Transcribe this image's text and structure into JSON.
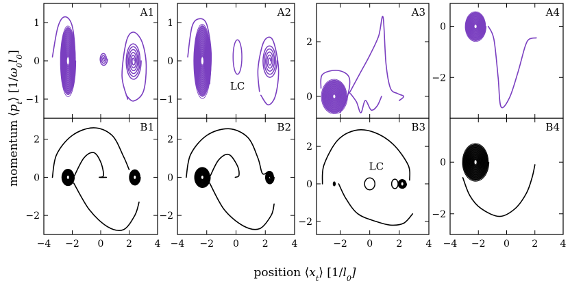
{
  "figure": {
    "ylabel": "momentum ⟨p_t⟩ [1/ω₀l₀]",
    "ylabel_parts": [
      "momentum ⟨",
      "p",
      "t",
      "⟩ [1/",
      "ω",
      "0",
      "l",
      "0",
      "]"
    ],
    "xlabel": "position ⟨x_t⟩ [1/l₀]",
    "xlabel_parts": [
      "position ⟨",
      "x",
      "t",
      "⟩ [1/",
      "l",
      "0",
      "]"
    ],
    "colors": {
      "row_a": "#7a3fc0",
      "row_b": "#000000"
    }
  },
  "chart_data": [
    {
      "id": "A1",
      "label": "A1",
      "type": "line",
      "row": "A",
      "xlim": [
        -4,
        4
      ],
      "ylim": [
        -1.5,
        1.5
      ],
      "yticks": [
        -1,
        0,
        1
      ],
      "xticks": [
        -4,
        -2,
        0,
        2,
        4
      ],
      "features": [
        {
          "kind": "spiral",
          "cx": -2.3,
          "cy": 0.0,
          "rx": 0.55,
          "ry": 0.95,
          "rx0": 0.1,
          "ry0": 0.12,
          "turns": 16,
          "filled": true
        },
        {
          "kind": "spiral",
          "cx": 0.2,
          "cy": 0.05,
          "rx": 0.28,
          "ry": 0.18,
          "rx0": 0.02,
          "ry0": 0.02,
          "turns": 3
        },
        {
          "kind": "spiral",
          "cx": 2.3,
          "cy": 0.0,
          "rx": 0.55,
          "ry": 0.5,
          "rx0": 0.05,
          "ry0": 0.05,
          "turns": 6
        }
      ],
      "path": [
        [
          -3.4,
          0.1
        ],
        [
          -3.0,
          0.9
        ],
        [
          -2.5,
          1.15
        ],
        [
          -2.0,
          0.9
        ],
        [
          -1.8,
          0.1
        ],
        [
          -1.9,
          -0.6
        ]
      ],
      "path2": [
        [
          1.9,
          -1.0
        ],
        [
          1.5,
          -0.4
        ],
        [
          1.8,
          0.5
        ],
        [
          2.3,
          0.75
        ],
        [
          2.9,
          0.5
        ],
        [
          3.2,
          -0.1
        ],
        [
          3.0,
          -0.8
        ],
        [
          2.3,
          -1.05
        ],
        [
          1.8,
          -0.9
        ]
      ]
    },
    {
      "id": "A2",
      "label": "A2",
      "type": "line",
      "row": "A",
      "xlim": [
        -4,
        4
      ],
      "ylim": [
        -1.5,
        1.5
      ],
      "yticks": [
        -1,
        0,
        1
      ],
      "xticks": [
        -4,
        -2,
        0,
        2,
        4
      ],
      "annotation": "LC",
      "features": [
        {
          "kind": "spiral",
          "cx": -2.3,
          "cy": 0.0,
          "rx": 0.6,
          "ry": 1.0,
          "rx0": 0.1,
          "ry0": 0.12,
          "turns": 16,
          "filled": true
        },
        {
          "kind": "loop",
          "cx": 0.1,
          "cy": 0.1,
          "rx": 0.3,
          "ry": 0.45
        },
        {
          "kind": "spiral",
          "cx": 2.3,
          "cy": 0.0,
          "rx": 0.5,
          "ry": 0.45,
          "rx0": 0.05,
          "ry0": 0.05,
          "turns": 5
        }
      ],
      "path": [
        [
          -3.3,
          0.1
        ],
        [
          -3.0,
          0.9
        ],
        [
          -2.5,
          1.1
        ],
        [
          -2.0,
          0.95
        ],
        [
          -1.7,
          0.2
        ],
        [
          -1.8,
          -0.6
        ]
      ],
      "path2": [
        [
          1.6,
          -0.8
        ],
        [
          1.5,
          -0.2
        ],
        [
          1.9,
          0.5
        ],
        [
          2.5,
          0.55
        ],
        [
          2.9,
          -0.2
        ],
        [
          2.7,
          -0.9
        ],
        [
          2.2,
          -1.15
        ],
        [
          1.7,
          -0.9
        ]
      ]
    },
    {
      "id": "A3",
      "label": "A3",
      "type": "line",
      "row": "A",
      "xlim": [
        -3.6,
        4
      ],
      "ylim": [
        -0.8,
        3.4
      ],
      "yticks": [
        0,
        2
      ],
      "xticks": [
        -2,
        0,
        2,
        4
      ],
      "features": [
        {
          "kind": "spiral",
          "cx": -2.4,
          "cy": 0.0,
          "rx": 0.9,
          "ry": 0.65,
          "rx0": 0.1,
          "ry0": 0.07,
          "turns": 16,
          "filled": true
        }
      ],
      "path": [
        [
          -3.3,
          0.3
        ],
        [
          -3.2,
          0.8
        ],
        [
          -2.2,
          0.95
        ],
        [
          -1.4,
          0.7
        ],
        [
          -1.5,
          0.0
        ],
        [
          -2.0,
          -0.6
        ]
      ],
      "path2": [
        [
          -1.4,
          0.1
        ],
        [
          -0.6,
          0.9
        ],
        [
          0.0,
          1.5
        ],
        [
          0.6,
          2.2
        ],
        [
          0.9,
          2.9
        ],
        [
          1.1,
          1.2
        ],
        [
          1.4,
          0.3
        ],
        [
          1.9,
          0.1
        ],
        [
          2.3,
          0.0
        ],
        [
          2.0,
          -0.15
        ]
      ],
      "path3": [
        [
          -1.3,
          0.1
        ],
        [
          -0.9,
          -0.2
        ],
        [
          -0.6,
          -0.6
        ],
        [
          -0.3,
          -0.15
        ],
        [
          0.1,
          -0.5
        ],
        [
          0.5,
          -0.35
        ],
        [
          0.8,
          0.0
        ]
      ]
    },
    {
      "id": "A4",
      "label": "A4",
      "type": "line",
      "row": "A",
      "xlim": [
        -4,
        4
      ],
      "ylim": [
        -3.6,
        0.9
      ],
      "yticks": [
        -2,
        0
      ],
      "xticks": [
        -4,
        -2,
        0,
        2,
        4
      ],
      "features": [
        {
          "kind": "spiral",
          "cx": -2.2,
          "cy": 0.0,
          "rx": 0.75,
          "ry": 0.6,
          "rx0": 0.1,
          "ry0": 0.07,
          "turns": 16,
          "filled": true
        }
      ],
      "path": [
        [
          -1.3,
          0.0
        ],
        [
          -0.9,
          -0.5
        ],
        [
          -0.6,
          -2.0
        ],
        [
          -0.4,
          -3.15
        ],
        [
          0.2,
          -2.8
        ],
        [
          0.8,
          -1.8
        ],
        [
          1.3,
          -0.8
        ],
        [
          1.6,
          -0.5
        ],
        [
          2.1,
          -0.45
        ]
      ]
    },
    {
      "id": "B1",
      "label": "B1",
      "type": "line",
      "row": "B",
      "xlim": [
        -4,
        4
      ],
      "ylim": [
        -3.0,
        3.1
      ],
      "yticks": [
        -2,
        0,
        2
      ],
      "xticks": [
        -4,
        -2,
        0,
        2,
        4
      ],
      "features": [
        {
          "kind": "spiral",
          "cx": -2.3,
          "cy": 0.0,
          "rx": 0.45,
          "ry": 0.45,
          "rx0": 0.06,
          "ry0": 0.06,
          "turns": 14,
          "filled": true
        },
        {
          "kind": "spiral",
          "cx": 2.4,
          "cy": 0.0,
          "rx": 0.4,
          "ry": 0.42,
          "rx0": 0.05,
          "ry0": 0.05,
          "turns": 14,
          "filled": true
        }
      ],
      "path": [
        [
          -3.4,
          0.0
        ],
        [
          -3.1,
          1.2
        ],
        [
          -2.0,
          2.2
        ],
        [
          -0.5,
          2.6
        ],
        [
          0.8,
          2.2
        ],
        [
          1.6,
          1.1
        ],
        [
          2.0,
          0.4
        ]
      ],
      "path2": [
        [
          -1.9,
          0.0
        ],
        [
          -1.2,
          1.0
        ],
        [
          -0.5,
          1.3
        ],
        [
          0.0,
          0.8
        ],
        [
          0.2,
          0.1
        ],
        [
          -0.1,
          0.0
        ],
        [
          0.4,
          0.0
        ]
      ],
      "path3": [
        [
          -1.9,
          -0.3
        ],
        [
          -0.8,
          -1.7
        ],
        [
          0.5,
          -2.6
        ],
        [
          1.6,
          -2.75
        ],
        [
          2.4,
          -2.0
        ],
        [
          2.7,
          -1.3
        ]
      ]
    },
    {
      "id": "B2",
      "label": "B2",
      "type": "line",
      "row": "B",
      "xlim": [
        -4,
        4
      ],
      "ylim": [
        -3.0,
        3.1
      ],
      "yticks": [
        -2,
        0,
        2
      ],
      "xticks": [
        -4,
        -2,
        0,
        2,
        4
      ],
      "features": [
        {
          "kind": "spiral",
          "cx": -2.3,
          "cy": 0.0,
          "rx": 0.55,
          "ry": 0.55,
          "rx0": 0.06,
          "ry0": 0.06,
          "turns": 14,
          "filled": true
        },
        {
          "kind": "spiral",
          "cx": 2.3,
          "cy": 0.0,
          "rx": 0.3,
          "ry": 0.35,
          "rx0": 0.04,
          "ry0": 0.04,
          "turns": 6
        }
      ],
      "path": [
        [
          -3.4,
          0.0
        ],
        [
          -3.1,
          1.2
        ],
        [
          -2.0,
          2.2
        ],
        [
          -0.5,
          2.55
        ],
        [
          0.8,
          2.1
        ],
        [
          1.5,
          1.0
        ],
        [
          1.8,
          0.2
        ],
        [
          2.2,
          0.3
        ]
      ],
      "path2": [
        [
          -1.8,
          0.0
        ],
        [
          -1.2,
          0.9
        ],
        [
          -0.5,
          1.2
        ],
        [
          0.1,
          0.6
        ],
        [
          0.2,
          0.1
        ],
        [
          -0.05,
          0.0
        ]
      ],
      "path3": [
        [
          -1.8,
          -0.3
        ],
        [
          -0.8,
          -1.7
        ],
        [
          0.5,
          -2.55
        ],
        [
          1.6,
          -2.7
        ],
        [
          2.4,
          -2.0
        ],
        [
          2.6,
          -1.4
        ]
      ]
    },
    {
      "id": "B3",
      "label": "B3",
      "type": "line",
      "row": "B",
      "xlim": [
        -3.6,
        4
      ],
      "ylim": [
        -2.7,
        3.5
      ],
      "yticks": [
        -2,
        0,
        2
      ],
      "xticks": [
        -2,
        0,
        2,
        4
      ],
      "annotation": "LC",
      "features": [
        {
          "kind": "spiral",
          "cx": 2.2,
          "cy": 0.0,
          "rx": 0.3,
          "ry": 0.25,
          "rx0": 0.05,
          "ry0": 0.05,
          "turns": 10,
          "filled": true
        },
        {
          "kind": "loop",
          "cx": 0.0,
          "cy": 0.0,
          "rx": 0.35,
          "ry": 0.32
        },
        {
          "kind": "loop",
          "cx": 1.7,
          "cy": 0.0,
          "rx": 0.22,
          "ry": 0.25
        },
        {
          "kind": "dot",
          "cx": -2.4,
          "cy": 0.0,
          "r": 0.1
        }
      ],
      "path": [
        [
          -3.2,
          0.0
        ],
        [
          -3.1,
          1.0
        ],
        [
          -2.2,
          2.3
        ],
        [
          -1.0,
          2.85
        ],
        [
          0.3,
          2.75
        ],
        [
          1.6,
          2.1
        ],
        [
          2.6,
          1.0
        ],
        [
          2.7,
          0.2
        ]
      ],
      "path2": [
        [
          -2.1,
          0.0
        ],
        [
          -1.6,
          -0.8
        ],
        [
          -0.8,
          -1.6
        ],
        [
          0.4,
          -2.0
        ],
        [
          1.4,
          -2.2
        ],
        [
          2.3,
          -2.1
        ],
        [
          2.9,
          -1.6
        ]
      ]
    },
    {
      "id": "B4",
      "label": "B4",
      "type": "line",
      "row": "B",
      "xlim": [
        -4,
        4
      ],
      "ylim": [
        -2.8,
        1.7
      ],
      "yticks": [
        -2,
        0
      ],
      "xticks": [
        -4,
        -2,
        0,
        2,
        4
      ],
      "features": [
        {
          "kind": "spiral",
          "cx": -2.2,
          "cy": 0.0,
          "rx": 0.95,
          "ry": 0.75,
          "rx0": 0.12,
          "ry0": 0.1,
          "turns": 18,
          "filled": true
        }
      ],
      "path": [
        [
          -3.1,
          -0.6
        ],
        [
          -2.6,
          -1.3
        ],
        [
          -1.8,
          -1.8
        ],
        [
          -0.5,
          -2.1
        ],
        [
          0.6,
          -1.8
        ],
        [
          1.4,
          -1.2
        ],
        [
          1.8,
          -0.6
        ],
        [
          2.0,
          -0.1
        ]
      ]
    }
  ]
}
